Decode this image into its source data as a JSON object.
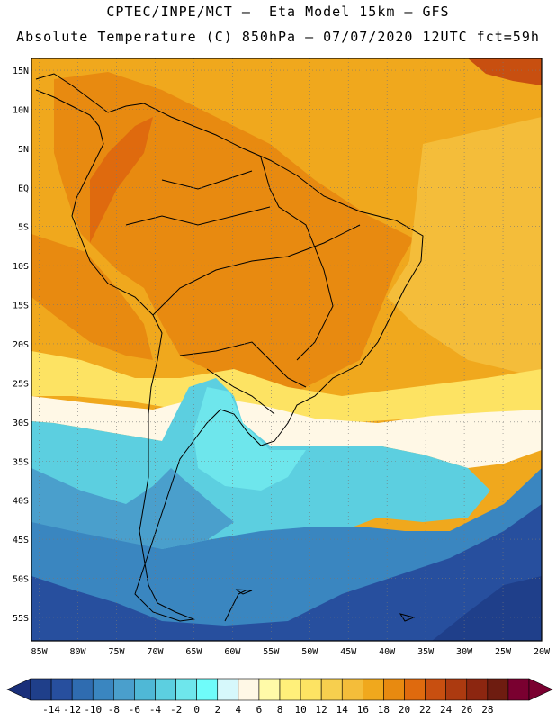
{
  "header": {
    "line1": "CPTEC/INPE/MCT —  Eta Model 15km — GFS",
    "line2": "Absolute Temperature (C) 850hPa — 07/07/2020 12UTC fct=59h"
  },
  "map": {
    "lat_labels": [
      "15N",
      "10N",
      "5N",
      "EQ",
      "5S",
      "10S",
      "15S",
      "20S",
      "25S",
      "30S",
      "35S",
      "40S",
      "45S",
      "50S",
      "55S"
    ],
    "lon_labels": [
      "85W",
      "80W",
      "75W",
      "70W",
      "65W",
      "60W",
      "55W",
      "50W",
      "45W",
      "40W",
      "35W",
      "30W",
      "25W",
      "20W"
    ],
    "lat_range": [
      -58,
      16.5
    ],
    "lon_range": [
      -86,
      -20
    ],
    "grid": "dotted",
    "frame_color": "#000000"
  },
  "colorbar": {
    "tick_labels": [
      "-14",
      "-12",
      "-10",
      "-8",
      "-6",
      "-4",
      "-2",
      "0",
      "2",
      "4",
      "6",
      "8",
      "10",
      "12",
      "14",
      "16",
      "18",
      "20",
      "22",
      "24",
      "26",
      "28"
    ],
    "colors": [
      "#1f3f8a",
      "#274f9e",
      "#2f6cb0",
      "#3a86c0",
      "#4a9fcc",
      "#4fb8d6",
      "#5ccfe0",
      "#6ee6ec",
      "#6ffcfa",
      "#d6f8fb",
      "#fff8e6",
      "#fffaa8",
      "#fff07a",
      "#fde363",
      "#f7cf4e",
      "#f4bd3a",
      "#f0a81d",
      "#e88a10",
      "#df6a0e",
      "#c84f10",
      "#ac3a10",
      "#8c2610",
      "#6e1c10",
      "#7a0030"
    ],
    "under_color": "#1a2f7a",
    "over_color": "#7a0030"
  },
  "fields": {
    "ocean_warm": "#f0a81d",
    "land_tropic": "#e88a10",
    "subtropic_pale": "#fde363",
    "cream": "#fff8e6",
    "cyan": "#5ccfe0",
    "blue": "#3a86c0",
    "deep_blue": "#274f9e"
  }
}
